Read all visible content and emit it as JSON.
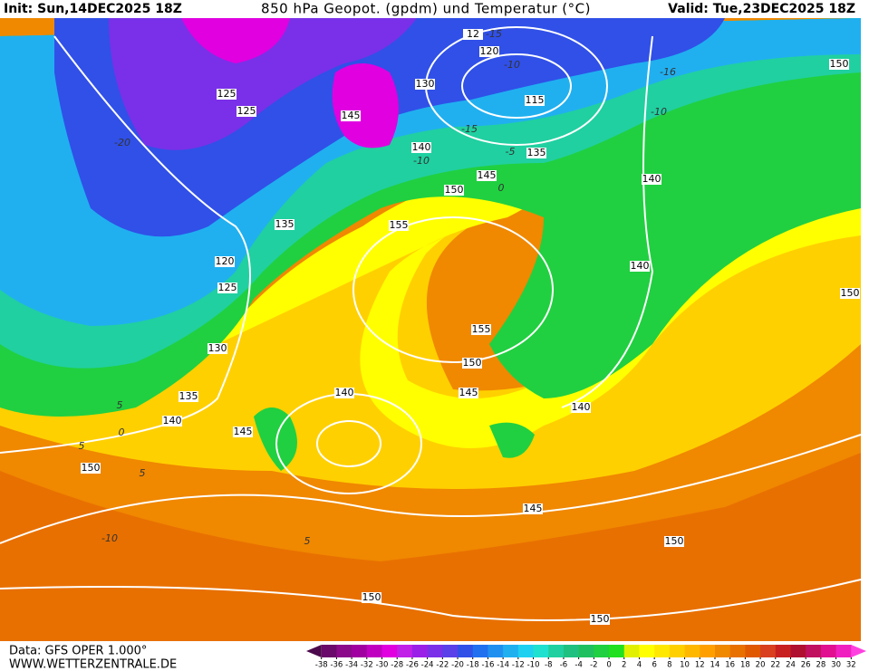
{
  "header": {
    "init": "Init: Sun,14DEC2025 18Z",
    "title": "850 hPa Geopot. (gpdm) und Temperatur (°C)",
    "valid": "Valid: Tue,23DEC2025 18Z"
  },
  "footer": {
    "data_source": "Data: GFS OPER 1.000°",
    "website": "WWW.WETTERZENTRALE.DE"
  },
  "map": {
    "geopotential_labels": [
      125,
      125,
      130,
      145,
      140,
      135,
      145,
      150,
      140,
      135,
      155,
      120,
      125,
      140,
      150,
      155,
      150,
      145,
      130,
      135,
      140,
      140,
      140,
      145,
      150,
      145,
      150,
      150,
      150,
      120,
      115,
      12,
      150
    ],
    "temperature_labels": [
      -15,
      -10,
      -16,
      -10,
      -15,
      -20,
      -10,
      -5,
      0,
      5,
      0,
      5,
      5,
      -10,
      5
    ]
  },
  "colorbar": {
    "ticks": [
      -38,
      -36,
      -34,
      -32,
      -30,
      -28,
      -26,
      -24,
      -22,
      -20,
      -18,
      -16,
      -14,
      -12,
      -10,
      -8,
      -6,
      -4,
      -2,
      0,
      2,
      4,
      6,
      8,
      10,
      12,
      14,
      16,
      18,
      20,
      22,
      24,
      26,
      28,
      30,
      32
    ],
    "colors": [
      "#4b0a4b",
      "#6a0a6a",
      "#8a0a8a",
      "#a000a0",
      "#c000c0",
      "#e000e0",
      "#c020e8",
      "#9a20e8",
      "#7a30e8",
      "#5a40e8",
      "#3050e8",
      "#2070f0",
      "#2090f0",
      "#20b0f0",
      "#20d0f0",
      "#20e0d0",
      "#20d0a0",
      "#20c080",
      "#20c060",
      "#20d040",
      "#20e020",
      "#e0f000",
      "#ffff00",
      "#ffe800",
      "#ffd000",
      "#ffb800",
      "#ffa000",
      "#f08800",
      "#e87000",
      "#e05800",
      "#d84020",
      "#c82020",
      "#b01030",
      "#c01060",
      "#e01090",
      "#f020c0",
      "#ff40e0"
    ]
  }
}
